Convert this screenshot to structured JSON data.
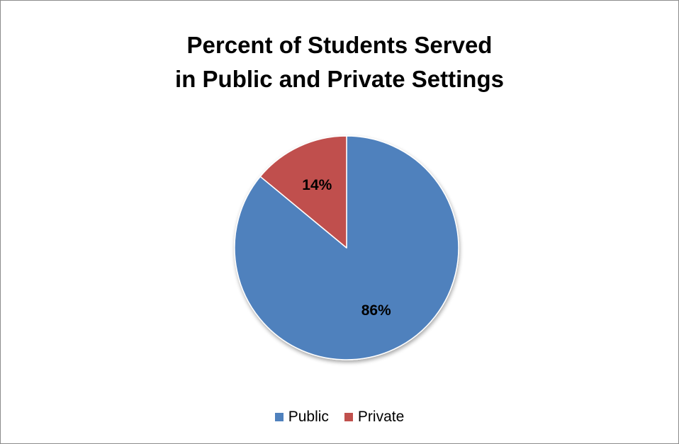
{
  "chart_data": {
    "type": "pie",
    "title_lines": [
      "Percent of Students Served",
      "in Public and Private Settings"
    ],
    "slices": [
      {
        "name": "Public",
        "value": 86,
        "label": "86%",
        "color": "#4f81bd"
      },
      {
        "name": "Private",
        "value": 14,
        "label": "14%",
        "color": "#c0504d"
      }
    ],
    "legend_position": "bottom",
    "start_angle_deg": 0,
    "direction": "clockwise"
  }
}
